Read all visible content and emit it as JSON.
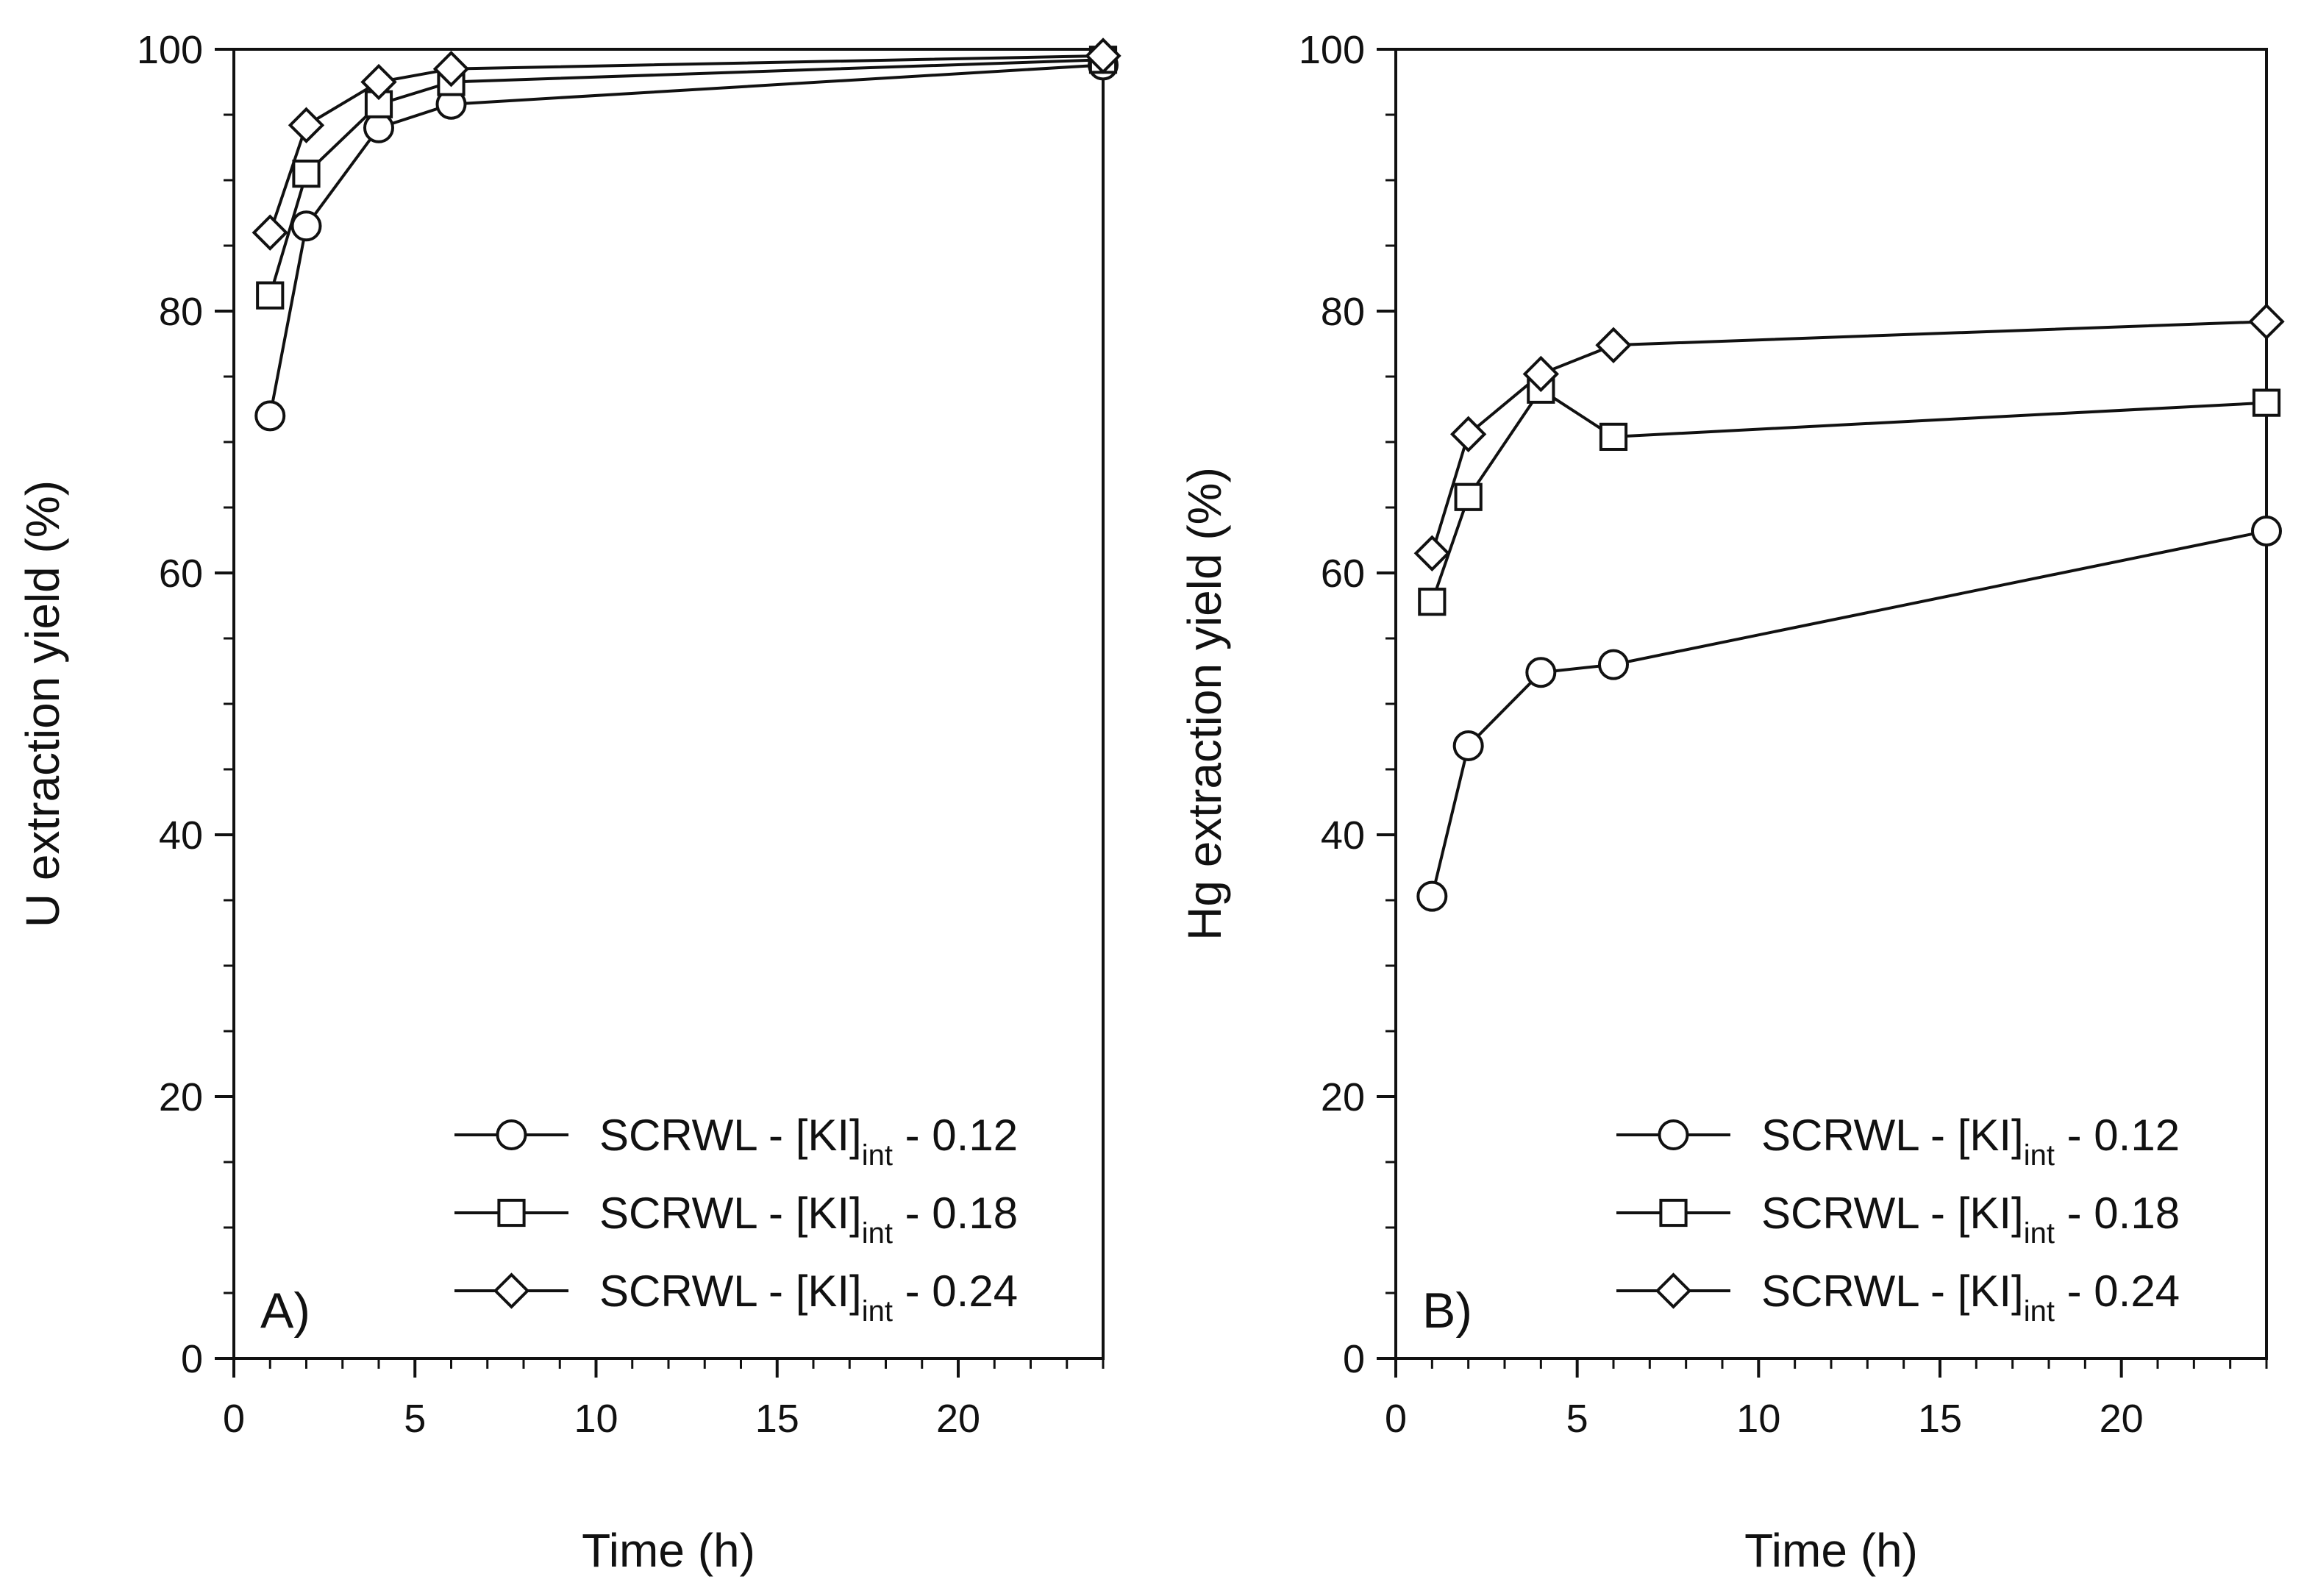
{
  "chart_data": [
    {
      "type": "line",
      "panel_label": "A)",
      "xlabel": "Time (h)",
      "ylabel": "U extraction yield (%)",
      "xlim": [
        0,
        24
      ],
      "ylim": [
        0,
        100
      ],
      "x_ticks": [
        0,
        5,
        10,
        15,
        20
      ],
      "y_ticks": [
        0,
        20,
        40,
        60,
        80,
        100
      ],
      "x_minor_step": 1,
      "y_minor_step": 5,
      "legend_position": "bottom-right",
      "series": [
        {
          "name_prefix": "SCRWL - [KI]",
          "name_sub": "int",
          "name_suffix": " - 0.12",
          "marker": "circle",
          "x": [
            1,
            2,
            4,
            6,
            24
          ],
          "y": [
            72.0,
            86.5,
            94.0,
            95.8,
            98.8
          ]
        },
        {
          "name_prefix": "SCRWL - [KI]",
          "name_sub": "int",
          "name_suffix": " - 0.18",
          "marker": "square",
          "x": [
            1,
            2,
            4,
            6,
            24
          ],
          "y": [
            81.2,
            90.5,
            95.8,
            97.5,
            99.2
          ]
        },
        {
          "name_prefix": "SCRWL - [KI]",
          "name_sub": "int",
          "name_suffix": " - 0.24",
          "marker": "diamond",
          "x": [
            1,
            2,
            4,
            6,
            24
          ],
          "y": [
            86.0,
            94.2,
            97.5,
            98.5,
            99.5
          ]
        }
      ]
    },
    {
      "type": "line",
      "panel_label": "B)",
      "xlabel": "Time (h)",
      "ylabel": "Hg extraction yield (%)",
      "xlim": [
        0,
        24
      ],
      "ylim": [
        0,
        100
      ],
      "x_ticks": [
        0,
        5,
        10,
        15,
        20
      ],
      "y_ticks": [
        0,
        20,
        40,
        60,
        80,
        100
      ],
      "x_minor_step": 1,
      "y_minor_step": 5,
      "legend_position": "bottom-right",
      "series": [
        {
          "name_prefix": "SCRWL - [KI]",
          "name_sub": "int",
          "name_suffix": " - 0.12",
          "marker": "circle",
          "x": [
            1,
            2,
            4,
            6,
            24
          ],
          "y": [
            35.3,
            46.8,
            52.4,
            53.0,
            63.2
          ]
        },
        {
          "name_prefix": "SCRWL - [KI]",
          "name_sub": "int",
          "name_suffix": " - 0.18",
          "marker": "square",
          "x": [
            1,
            2,
            4,
            6,
            24
          ],
          "y": [
            57.8,
            65.8,
            74.0,
            70.4,
            73.0
          ]
        },
        {
          "name_prefix": "SCRWL - [KI]",
          "name_sub": "int",
          "name_suffix": " - 0.24",
          "marker": "diamond",
          "x": [
            1,
            2,
            4,
            6,
            24
          ],
          "y": [
            61.5,
            70.6,
            75.2,
            77.4,
            79.2
          ]
        }
      ]
    }
  ]
}
